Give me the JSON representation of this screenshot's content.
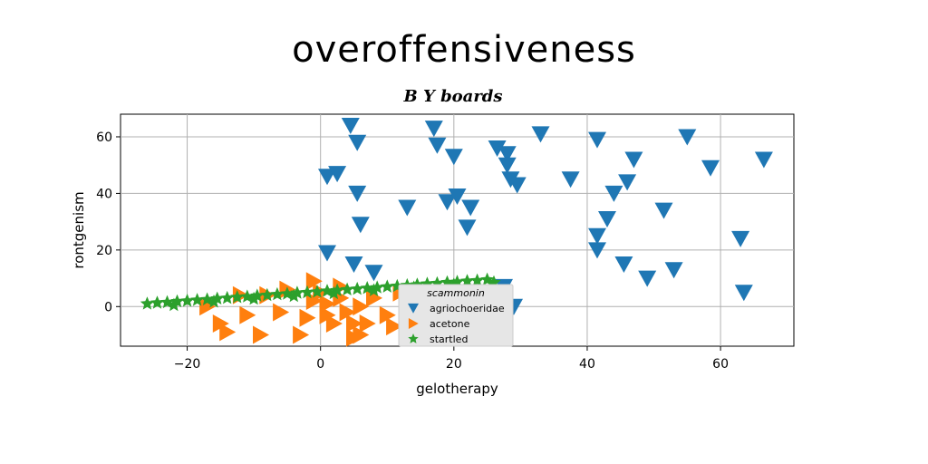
{
  "chart_data": {
    "type": "scatter",
    "title": "overoffensiveness",
    "subtitle": "B Y boards",
    "xlabel": "gelotherapy",
    "ylabel": "rontgenism",
    "xlim": [
      -30,
      71
    ],
    "ylim": [
      -14,
      68
    ],
    "x_ticks": [
      -20,
      0,
      20,
      40,
      60
    ],
    "y_ticks": [
      0,
      20,
      40,
      60
    ],
    "grid": true,
    "legend": {
      "title": "scammonin",
      "placement": "lower-center"
    },
    "series": [
      {
        "name": "agriochoeridae",
        "marker": "triangle-down",
        "color": "#1f77b4",
        "points": [
          [
            4.5,
            64
          ],
          [
            5.5,
            58
          ],
          [
            1,
            46
          ],
          [
            2.5,
            47
          ],
          [
            5.5,
            40
          ],
          [
            6,
            29
          ],
          [
            1,
            19
          ],
          [
            5,
            15
          ],
          [
            8,
            12
          ],
          [
            13,
            35
          ],
          [
            17,
            63
          ],
          [
            17.5,
            57
          ],
          [
            20,
            53
          ],
          [
            19,
            37
          ],
          [
            20.5,
            39
          ],
          [
            22.5,
            35
          ],
          [
            22,
            28
          ],
          [
            26.5,
            56
          ],
          [
            28,
            54
          ],
          [
            28,
            50
          ],
          [
            28.5,
            45
          ],
          [
            29.5,
            43
          ],
          [
            27.5,
            7
          ],
          [
            29,
            0
          ],
          [
            33,
            61
          ],
          [
            37.5,
            45
          ],
          [
            41.5,
            59
          ],
          [
            44,
            40
          ],
          [
            46,
            44
          ],
          [
            47,
            52
          ],
          [
            43,
            31
          ],
          [
            41.5,
            25
          ],
          [
            41.5,
            20
          ],
          [
            45.5,
            15
          ],
          [
            49,
            10
          ],
          [
            51.5,
            34
          ],
          [
            53,
            13
          ],
          [
            55,
            60
          ],
          [
            58.5,
            49
          ],
          [
            63,
            24
          ],
          [
            63.5,
            5
          ],
          [
            66.5,
            52
          ]
        ]
      },
      {
        "name": "acetone",
        "marker": "triangle-right",
        "color": "#ff7f0e",
        "points": [
          [
            -17,
            0
          ],
          [
            -15,
            -6
          ],
          [
            -14,
            -9
          ],
          [
            -12,
            4
          ],
          [
            -9,
            -10
          ],
          [
            -8,
            4
          ],
          [
            -6,
            -2
          ],
          [
            -5,
            6
          ],
          [
            -3,
            -10
          ],
          [
            -2,
            -4
          ],
          [
            -1,
            9
          ],
          [
            -1,
            2
          ],
          [
            0,
            5
          ],
          [
            1,
            -3
          ],
          [
            1,
            1
          ],
          [
            2,
            -6
          ],
          [
            3,
            7
          ],
          [
            3,
            3
          ],
          [
            4,
            -2
          ],
          [
            5,
            -6
          ],
          [
            5,
            -11
          ],
          [
            6,
            0
          ],
          [
            6,
            -10
          ],
          [
            7,
            -6
          ],
          [
            8,
            3
          ],
          [
            10,
            -3
          ],
          [
            11,
            -7
          ],
          [
            12,
            5
          ],
          [
            14,
            -4
          ],
          [
            -11,
            -3
          ]
        ]
      },
      {
        "name": "startled",
        "marker": "star",
        "color": "#2ca02c",
        "points": [
          [
            -26,
            1
          ],
          [
            -24.5,
            1.3
          ],
          [
            -23,
            1.5
          ],
          [
            -21.5,
            1.8
          ],
          [
            -20,
            2
          ],
          [
            -18.5,
            2.3
          ],
          [
            -17,
            2.5
          ],
          [
            -15.5,
            2.8
          ],
          [
            -14,
            3
          ],
          [
            -12.5,
            3.3
          ],
          [
            -11,
            3.5
          ],
          [
            -9.5,
            3.8
          ],
          [
            -8,
            4
          ],
          [
            -6.5,
            4.3
          ],
          [
            -5,
            4.5
          ],
          [
            -3.5,
            4.8
          ],
          [
            -2,
            5
          ],
          [
            -0.5,
            5.2
          ],
          [
            1,
            5.5
          ],
          [
            2.5,
            5.7
          ],
          [
            4,
            6
          ],
          [
            5.5,
            6.2
          ],
          [
            7,
            6.5
          ],
          [
            8.5,
            6.7
          ],
          [
            10,
            7
          ],
          [
            11.5,
            7.2
          ],
          [
            13,
            7.5
          ],
          [
            14.5,
            7.7
          ],
          [
            16,
            8
          ],
          [
            17.5,
            8.2
          ],
          [
            19,
            8.5
          ],
          [
            20.5,
            8.7
          ],
          [
            22,
            9
          ],
          [
            23.5,
            9.2
          ],
          [
            25,
            9.5
          ],
          [
            -22,
            0.5
          ],
          [
            -16,
            1.7
          ],
          [
            -10,
            2.7
          ],
          [
            -4,
            3.7
          ],
          [
            2,
            4.7
          ],
          [
            8,
            5.7
          ],
          [
            14,
            6.7
          ],
          [
            20,
            7.7
          ],
          [
            26,
            8.5
          ]
        ]
      }
    ]
  }
}
